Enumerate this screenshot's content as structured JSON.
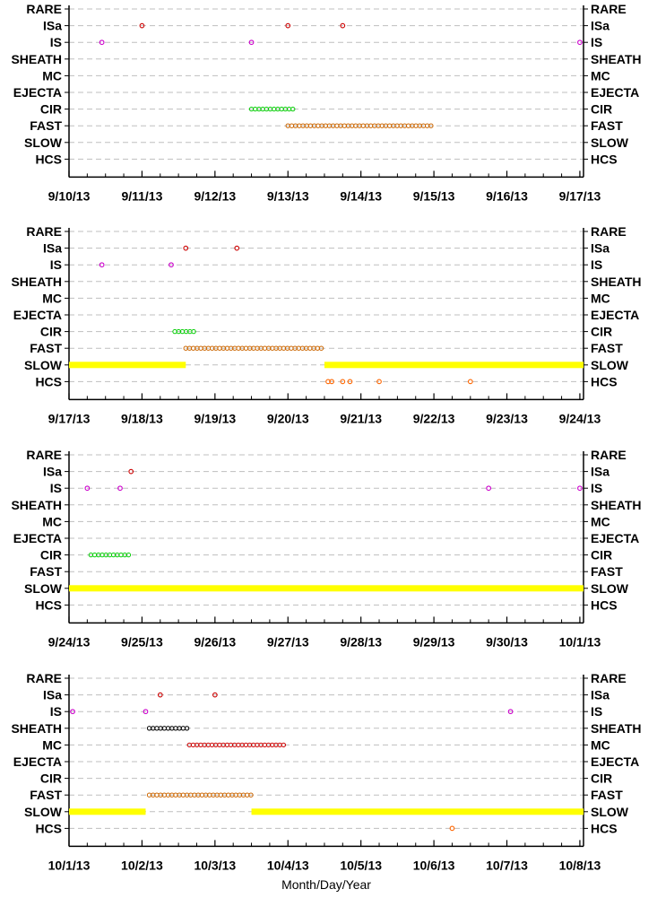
{
  "xlabel": "Month/Day/Year",
  "categories": [
    "RARE",
    "ISa",
    "IS",
    "SHEATH",
    "MC",
    "EJECTA",
    "CIR",
    "FAST",
    "SLOW",
    "HCS"
  ],
  "colors": {
    "ISa": "#cc0000",
    "IS": "#cc00cc",
    "SHEATH": "#000000",
    "MC": "#cc0000",
    "CIR": "#00cc00",
    "FAST": "#cc6600",
    "SLOW": "#ffff00",
    "HCS": "#ff6600",
    "grid": "#bfbfbf",
    "axis": "#000000"
  },
  "chart_data": [
    {
      "type": "scatter",
      "x_unit": "days since first tick label",
      "xticks": [
        "9/10/13",
        "9/11/13",
        "9/12/13",
        "9/13/13",
        "9/14/13",
        "9/15/13",
        "9/16/13",
        "9/17/13"
      ],
      "points": [
        {
          "category": "ISa",
          "days": [
            1.0,
            3.0,
            3.75
          ]
        },
        {
          "category": "IS",
          "days": [
            0.45,
            2.5,
            7.0
          ]
        }
      ],
      "intervals": [
        {
          "category": "CIR",
          "start": 2.5,
          "end": 3.1
        },
        {
          "category": "FAST",
          "start": 3.0,
          "end": 5.0
        }
      ]
    },
    {
      "type": "scatter",
      "xticks": [
        "9/17/13",
        "9/18/13",
        "9/19/13",
        "9/20/13",
        "9/21/13",
        "9/22/13",
        "9/23/13",
        "9/24/13"
      ],
      "points": [
        {
          "category": "ISa",
          "days": [
            1.6,
            2.3
          ]
        },
        {
          "category": "IS",
          "days": [
            0.45,
            1.4
          ]
        },
        {
          "category": "HCS",
          "days": [
            3.55,
            3.6,
            3.75,
            3.85,
            4.25,
            5.5
          ]
        }
      ],
      "intervals": [
        {
          "category": "CIR",
          "start": 1.45,
          "end": 1.75
        },
        {
          "category": "FAST",
          "start": 1.6,
          "end": 3.5
        },
        {
          "category": "SLOW",
          "start": 0.0,
          "end": 1.6
        },
        {
          "category": "SLOW",
          "start": 3.5,
          "end": 7.05
        }
      ]
    },
    {
      "type": "scatter",
      "xticks": [
        "9/24/13",
        "9/25/13",
        "9/26/13",
        "9/27/13",
        "9/28/13",
        "9/29/13",
        "9/30/13",
        "10/1/13"
      ],
      "points": [
        {
          "category": "ISa",
          "days": [
            0.85
          ]
        },
        {
          "category": "IS",
          "days": [
            0.25,
            0.7,
            5.75,
            7.0
          ]
        }
      ],
      "intervals": [
        {
          "category": "CIR",
          "start": 0.3,
          "end": 0.85
        },
        {
          "category": "SLOW",
          "start": 0.0,
          "end": 7.05
        }
      ]
    },
    {
      "type": "scatter",
      "xticks": [
        "10/1/13",
        "10/2/13",
        "10/3/13",
        "10/4/13",
        "10/5/13",
        "10/6/13",
        "10/7/13",
        "10/8/13"
      ],
      "points": [
        {
          "category": "ISa",
          "days": [
            1.25,
            2.0
          ]
        },
        {
          "category": "IS",
          "days": [
            0.05,
            1.05,
            6.05
          ]
        },
        {
          "category": "HCS",
          "days": [
            5.25
          ]
        }
      ],
      "intervals": [
        {
          "category": "SHEATH",
          "start": 1.1,
          "end": 1.65
        },
        {
          "category": "MC",
          "start": 1.65,
          "end": 2.95
        },
        {
          "category": "FAST",
          "start": 1.1,
          "end": 2.5
        },
        {
          "category": "SLOW",
          "start": 0.0,
          "end": 1.05
        },
        {
          "category": "SLOW",
          "start": 2.5,
          "end": 7.05
        }
      ]
    }
  ]
}
